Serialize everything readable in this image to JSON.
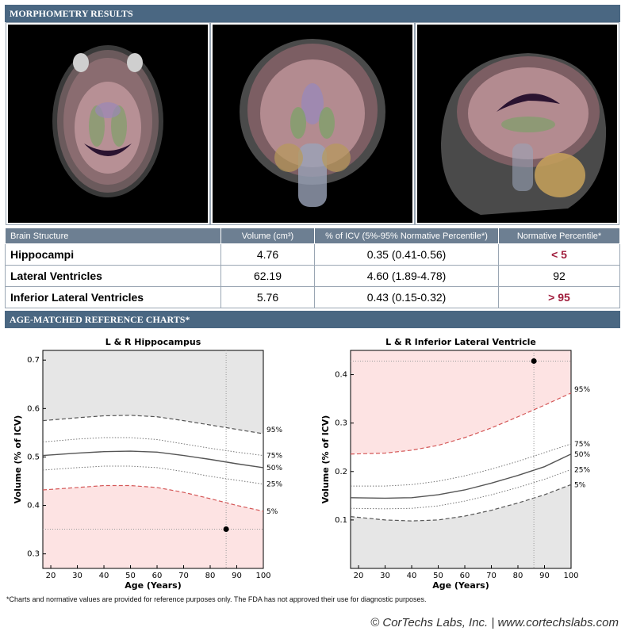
{
  "header": {
    "title": "MORPHOMETRY RESULTS"
  },
  "scans": [
    {
      "label": "axial-scan"
    },
    {
      "label": "coronal-scan"
    },
    {
      "label": "sagittal-scan"
    }
  ],
  "results_table": {
    "headers": [
      "Brain Structure",
      "Volume (cm³)",
      "% of ICV (5%-95% Normative Percentile*)",
      "Normative Percentile*"
    ],
    "rows": [
      {
        "structure": "Hippocampi",
        "volume": "4.76",
        "icv": "0.35 (0.41-0.56)",
        "percentile": "< 5",
        "flag": true
      },
      {
        "structure": "Lateral Ventricles",
        "volume": "62.19",
        "icv": "4.60 (1.89-4.78)",
        "percentile": "92",
        "flag": false
      },
      {
        "structure": "Inferior Lateral Ventricles",
        "volume": "5.76",
        "icv": "0.43 (0.15-0.32)",
        "percentile": "> 95",
        "flag": true
      }
    ],
    "flag_color": "#a01d3c"
  },
  "charts_header": {
    "title": "AGE-MATCHED REFERENCE CHARTS*"
  },
  "chart_data": [
    {
      "type": "line",
      "title": "L & R Hippocampus",
      "xlabel": "Age (Years)",
      "ylabel": "Volume (% of ICV)",
      "xlim": [
        17,
        100
      ],
      "ylim": [
        0.27,
        0.72
      ],
      "xticks": [
        20,
        30,
        40,
        50,
        60,
        70,
        80,
        90,
        100
      ],
      "yticks": [
        0.3,
        0.4,
        0.5,
        0.6,
        0.7
      ],
      "x": [
        17,
        30,
        40,
        50,
        60,
        70,
        80,
        90,
        100
      ],
      "series": [
        {
          "name": "95%",
          "style": "dashed",
          "values": [
            0.575,
            0.581,
            0.585,
            0.586,
            0.583,
            0.575,
            0.566,
            0.557,
            0.548
          ]
        },
        {
          "name": "75%",
          "style": "dotted",
          "values": [
            0.531,
            0.537,
            0.54,
            0.54,
            0.536,
            0.527,
            0.518,
            0.51,
            0.503
          ]
        },
        {
          "name": "50%",
          "style": "solid",
          "values": [
            0.503,
            0.508,
            0.511,
            0.512,
            0.51,
            0.503,
            0.495,
            0.486,
            0.478
          ]
        },
        {
          "name": "25%",
          "style": "dotted",
          "values": [
            0.473,
            0.478,
            0.481,
            0.481,
            0.478,
            0.47,
            0.46,
            0.452,
            0.444
          ]
        },
        {
          "name": "5%",
          "style": "dashed-red",
          "values": [
            0.432,
            0.437,
            0.441,
            0.441,
            0.437,
            0.427,
            0.414,
            0.4,
            0.388
          ]
        }
      ],
      "upper_shade": "gray",
      "lower_shade": "pink",
      "point": {
        "x": 86,
        "y": 0.351
      }
    },
    {
      "type": "line",
      "title": "L & R Inferior Lateral Ventricle",
      "xlabel": "Age (Years)",
      "ylabel": "Volume (% of ICV)",
      "xlim": [
        17,
        100
      ],
      "ylim": [
        0.0,
        0.45
      ],
      "xticks": [
        20,
        30,
        40,
        50,
        60,
        70,
        80,
        90,
        100
      ],
      "yticks": [
        0.1,
        0.2,
        0.3,
        0.4
      ],
      "x": [
        17,
        30,
        40,
        50,
        60,
        70,
        80,
        90,
        100
      ],
      "series": [
        {
          "name": "95%",
          "style": "dashed-red",
          "values": [
            0.236,
            0.238,
            0.244,
            0.254,
            0.27,
            0.29,
            0.313,
            0.337,
            0.362
          ]
        },
        {
          "name": "75%",
          "style": "dotted",
          "values": [
            0.17,
            0.17,
            0.173,
            0.18,
            0.191,
            0.205,
            0.221,
            0.239,
            0.257
          ]
        },
        {
          "name": "50%",
          "style": "solid",
          "values": [
            0.146,
            0.145,
            0.146,
            0.152,
            0.162,
            0.176,
            0.192,
            0.21,
            0.236
          ]
        },
        {
          "name": "25%",
          "style": "dotted",
          "values": [
            0.124,
            0.123,
            0.124,
            0.129,
            0.139,
            0.152,
            0.167,
            0.184,
            0.204
          ]
        },
        {
          "name": "5%",
          "style": "dashed",
          "values": [
            0.107,
            0.1,
            0.098,
            0.1,
            0.108,
            0.12,
            0.135,
            0.152,
            0.173
          ]
        }
      ],
      "upper_shade": "pink",
      "lower_shade": "gray",
      "point": {
        "x": 86,
        "y": 0.428
      }
    }
  ],
  "footnote": "*Charts and normative values are provided for reference purposes only. The FDA has not approved their use for diagnostic purposes.",
  "footer": "© CorTechs Labs, Inc. | www.cortechslabs.com",
  "colors": {
    "header_band": "#4a6782",
    "table_header": "#6d7f92",
    "shade_gray": "#e6e6e6",
    "shade_pink": "#fde3e3"
  }
}
